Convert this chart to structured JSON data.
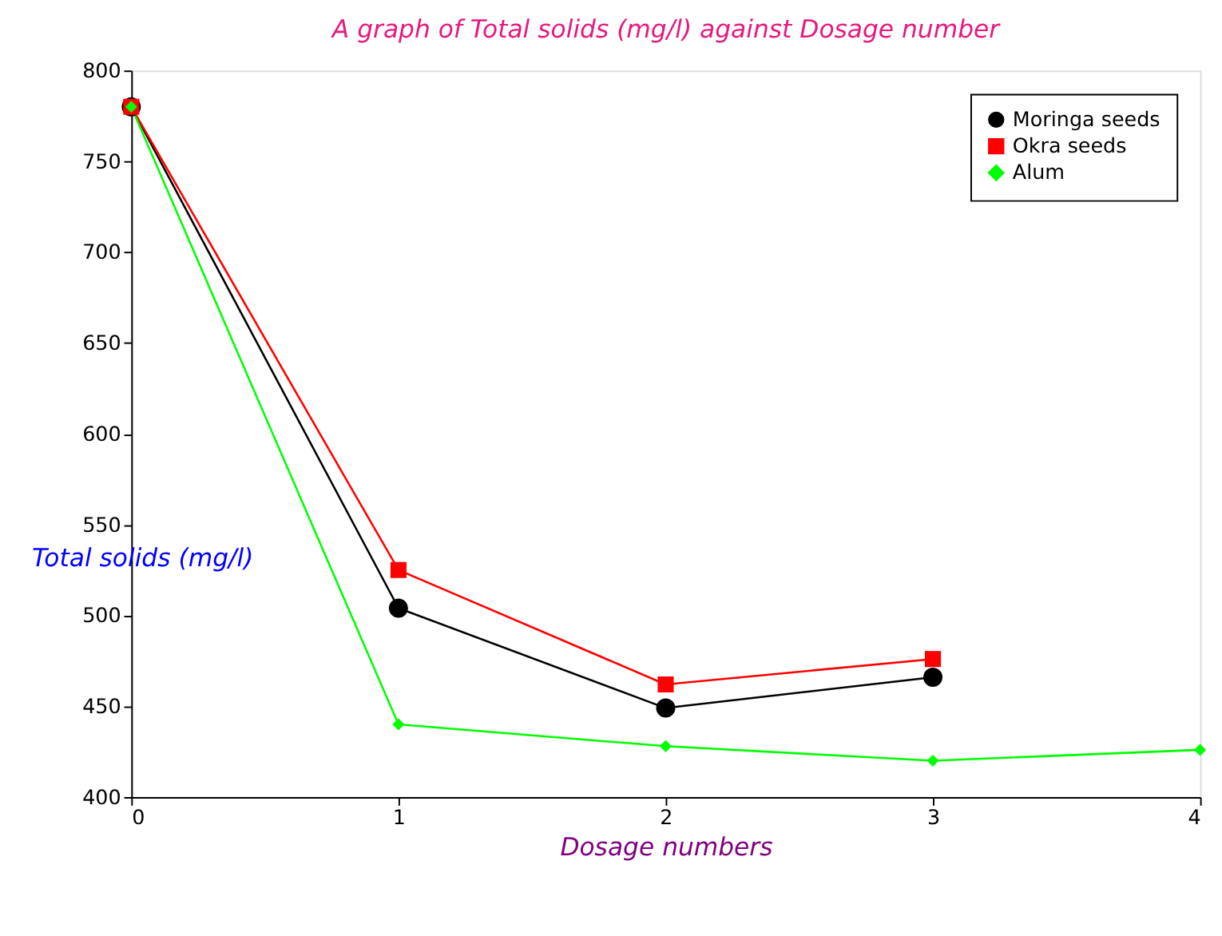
{
  "chart_data": {
    "type": "line",
    "title": "A graph of Total solids (mg/l) against Dosage number",
    "xlabel": "Dosage numbers",
    "ylabel": "Total solids (mg/l)",
    "x": [
      0,
      1,
      2,
      3
    ],
    "series": [
      {
        "name": "Moringa seeds",
        "color": "#000000",
        "marker": "circle",
        "values": [
          780,
          504,
          449,
          466
        ]
      },
      {
        "name": "Okra seeds",
        "color": "#ff0000",
        "marker": "square",
        "values": [
          780,
          525,
          462,
          476
        ]
      },
      {
        "name": "Alum",
        "color": "#00ff00",
        "marker": "diamond",
        "x": [
          0,
          1,
          2,
          3,
          4
        ],
        "values": [
          780,
          440,
          428,
          420,
          426
        ]
      }
    ],
    "xlim": [
      0,
      4
    ],
    "xticks": [
      0,
      1,
      2,
      3,
      4
    ],
    "ylim": [
      400,
      800
    ],
    "yticks": [
      400,
      450,
      500,
      550,
      600,
      650,
      700,
      750,
      800
    ],
    "grid": false,
    "legend": "top right"
  }
}
